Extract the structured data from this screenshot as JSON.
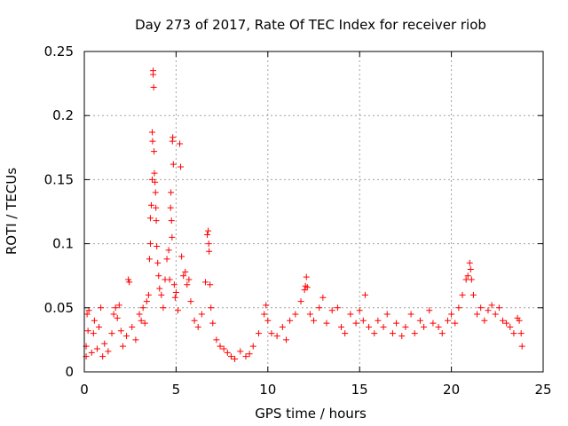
{
  "chart_data": {
    "type": "scatter",
    "title": "Day 273 of 2017, Rate Of TEC Index for receiver riob",
    "xlabel": "GPS time / hours",
    "ylabel": "ROTI / TECUs",
    "xlim": [
      0,
      25
    ],
    "ylim": [
      0,
      0.25
    ],
    "x_ticks": [
      "0",
      "5",
      "10",
      "15",
      "20",
      "25"
    ],
    "y_ticks": [
      "0",
      "0.05",
      "0.1",
      "0.15",
      "0.2",
      "0.25"
    ],
    "grid": true,
    "marker": "+",
    "marker_color": "#ff0000",
    "series": [
      {
        "points": [
          [
            0.1,
            0.012
          ],
          [
            0.1,
            0.02
          ],
          [
            0.15,
            0.045
          ],
          [
            0.2,
            0.032
          ],
          [
            0.25,
            0.048
          ],
          [
            0.4,
            0.015
          ],
          [
            0.5,
            0.03
          ],
          [
            0.55,
            0.04
          ],
          [
            0.7,
            0.018
          ],
          [
            0.8,
            0.035
          ],
          [
            0.9,
            0.05
          ],
          [
            1.0,
            0.012
          ],
          [
            1.1,
            0.022
          ],
          [
            1.3,
            0.016
          ],
          [
            1.5,
            0.03
          ],
          [
            1.6,
            0.045
          ],
          [
            1.7,
            0.05
          ],
          [
            1.8,
            0.042
          ],
          [
            1.9,
            0.052
          ],
          [
            2.0,
            0.032
          ],
          [
            2.1,
            0.02
          ],
          [
            2.3,
            0.028
          ],
          [
            2.4,
            0.072
          ],
          [
            2.45,
            0.07
          ],
          [
            2.6,
            0.035
          ],
          [
            2.8,
            0.025
          ],
          [
            3.0,
            0.045
          ],
          [
            3.1,
            0.04
          ],
          [
            3.2,
            0.05
          ],
          [
            3.3,
            0.038
          ],
          [
            3.4,
            0.055
          ],
          [
            3.5,
            0.06
          ],
          [
            3.55,
            0.088
          ],
          [
            3.6,
            0.1
          ],
          [
            3.6,
            0.12
          ],
          [
            3.65,
            0.13
          ],
          [
            3.7,
            0.15
          ],
          [
            3.7,
            0.187
          ],
          [
            3.72,
            0.18
          ],
          [
            3.75,
            0.232
          ],
          [
            3.75,
            0.235
          ],
          [
            3.78,
            0.222
          ],
          [
            3.8,
            0.172
          ],
          [
            3.82,
            0.155
          ],
          [
            3.85,
            0.148
          ],
          [
            3.88,
            0.14
          ],
          [
            3.9,
            0.128
          ],
          [
            3.92,
            0.118
          ],
          [
            3.95,
            0.098
          ],
          [
            4.0,
            0.085
          ],
          [
            4.05,
            0.075
          ],
          [
            4.1,
            0.065
          ],
          [
            4.2,
            0.06
          ],
          [
            4.3,
            0.05
          ],
          [
            4.4,
            0.072
          ],
          [
            4.5,
            0.088
          ],
          [
            4.6,
            0.095
          ],
          [
            4.65,
            0.072
          ],
          [
            4.7,
            0.128
          ],
          [
            4.72,
            0.14
          ],
          [
            4.75,
            0.118
          ],
          [
            4.78,
            0.105
          ],
          [
            4.8,
            0.18
          ],
          [
            4.82,
            0.183
          ],
          [
            4.85,
            0.162
          ],
          [
            4.9,
            0.068
          ],
          [
            4.95,
            0.058
          ],
          [
            5.0,
            0.062
          ],
          [
            5.1,
            0.048
          ],
          [
            5.2,
            0.178
          ],
          [
            5.25,
            0.16
          ],
          [
            5.3,
            0.09
          ],
          [
            5.4,
            0.075
          ],
          [
            5.5,
            0.078
          ],
          [
            5.6,
            0.068
          ],
          [
            5.7,
            0.072
          ],
          [
            5.8,
            0.055
          ],
          [
            6.0,
            0.04
          ],
          [
            6.2,
            0.035
          ],
          [
            6.4,
            0.045
          ],
          [
            6.6,
            0.07
          ],
          [
            6.7,
            0.107
          ],
          [
            6.75,
            0.11
          ],
          [
            6.78,
            0.1
          ],
          [
            6.8,
            0.094
          ],
          [
            6.85,
            0.068
          ],
          [
            6.9,
            0.05
          ],
          [
            7.0,
            0.038
          ],
          [
            7.2,
            0.025
          ],
          [
            7.4,
            0.02
          ],
          [
            7.6,
            0.018
          ],
          [
            7.8,
            0.015
          ],
          [
            8.0,
            0.012
          ],
          [
            8.2,
            0.01
          ],
          [
            8.5,
            0.016
          ],
          [
            8.8,
            0.012
          ],
          [
            9.0,
            0.014
          ],
          [
            9.2,
            0.02
          ],
          [
            9.5,
            0.03
          ],
          [
            9.8,
            0.045
          ],
          [
            9.9,
            0.052
          ],
          [
            10.0,
            0.04
          ],
          [
            10.2,
            0.03
          ],
          [
            10.5,
            0.028
          ],
          [
            10.8,
            0.035
          ],
          [
            11.0,
            0.025
          ],
          [
            11.2,
            0.04
          ],
          [
            11.5,
            0.045
          ],
          [
            11.8,
            0.055
          ],
          [
            12.0,
            0.064
          ],
          [
            12.05,
            0.067
          ],
          [
            12.1,
            0.074
          ],
          [
            12.15,
            0.066
          ],
          [
            12.3,
            0.045
          ],
          [
            12.5,
            0.04
          ],
          [
            12.8,
            0.05
          ],
          [
            13.0,
            0.058
          ],
          [
            13.2,
            0.038
          ],
          [
            13.5,
            0.048
          ],
          [
            13.8,
            0.05
          ],
          [
            14.0,
            0.035
          ],
          [
            14.2,
            0.03
          ],
          [
            14.5,
            0.045
          ],
          [
            14.8,
            0.038
          ],
          [
            15.0,
            0.048
          ],
          [
            15.2,
            0.04
          ],
          [
            15.3,
            0.06
          ],
          [
            15.5,
            0.035
          ],
          [
            15.8,
            0.03
          ],
          [
            16.0,
            0.04
          ],
          [
            16.3,
            0.035
          ],
          [
            16.5,
            0.045
          ],
          [
            16.8,
            0.03
          ],
          [
            17.0,
            0.038
          ],
          [
            17.3,
            0.028
          ],
          [
            17.5,
            0.035
          ],
          [
            17.8,
            0.045
          ],
          [
            18.0,
            0.03
          ],
          [
            18.3,
            0.04
          ],
          [
            18.5,
            0.035
          ],
          [
            18.8,
            0.048
          ],
          [
            19.0,
            0.038
          ],
          [
            19.3,
            0.035
          ],
          [
            19.5,
            0.03
          ],
          [
            19.8,
            0.04
          ],
          [
            20.0,
            0.045
          ],
          [
            20.2,
            0.038
          ],
          [
            20.4,
            0.05
          ],
          [
            20.6,
            0.06
          ],
          [
            20.8,
            0.072
          ],
          [
            20.9,
            0.075
          ],
          [
            21.0,
            0.085
          ],
          [
            21.05,
            0.08
          ],
          [
            21.1,
            0.072
          ],
          [
            21.2,
            0.06
          ],
          [
            21.4,
            0.045
          ],
          [
            21.6,
            0.05
          ],
          [
            21.8,
            0.04
          ],
          [
            22.0,
            0.048
          ],
          [
            22.2,
            0.052
          ],
          [
            22.4,
            0.045
          ],
          [
            22.6,
            0.05
          ],
          [
            22.8,
            0.04
          ],
          [
            23.0,
            0.038
          ],
          [
            23.2,
            0.035
          ],
          [
            23.4,
            0.03
          ],
          [
            23.6,
            0.042
          ],
          [
            23.7,
            0.04
          ],
          [
            23.8,
            0.03
          ],
          [
            23.85,
            0.02
          ]
        ]
      }
    ]
  }
}
